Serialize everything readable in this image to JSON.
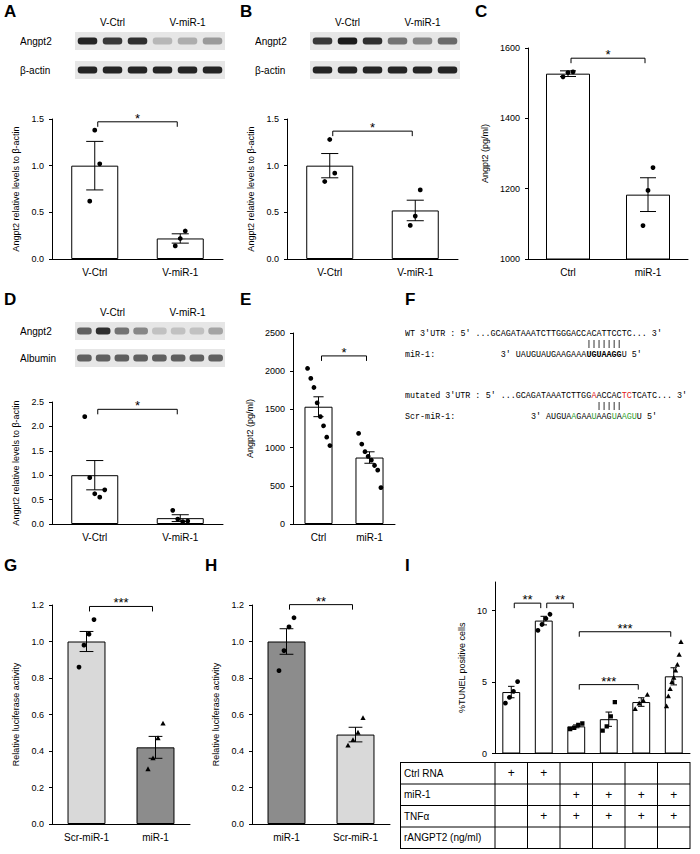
{
  "chart_data": [
    {
      "panel": "A",
      "type": "bar",
      "categories": [
        "V-Ctrl",
        "V-miR-1"
      ],
      "values": [
        1.0,
        0.22
      ],
      "errors": [
        0.26,
        0.05
      ],
      "points": [
        [
          0.62,
          1.38,
          1.02
        ],
        [
          0.14,
          0.22,
          0.3
        ]
      ],
      "colors": [
        "#ffffff",
        "#ffffff"
      ],
      "marker": [
        "circle",
        "circle"
      ],
      "ylabel": "Angpt2 relative levels to β-actin",
      "ylim": [
        0,
        1.5
      ],
      "yticks": [
        {
          "value": 0,
          "label": "0.0"
        },
        0.5,
        {
          "value": 1,
          "label": "1.0"
        },
        1.5
      ],
      "grid": false,
      "significance": [
        {
          "from": 0,
          "to": 1,
          "label": "*"
        }
      ]
    },
    {
      "panel": "B",
      "type": "bar",
      "categories": [
        "V-Ctrl",
        "V-miR-1"
      ],
      "values": [
        1.0,
        0.52
      ],
      "errors": [
        0.13,
        0.11
      ],
      "points": [
        [
          0.83,
          1.28,
          0.92
        ],
        [
          0.36,
          0.46,
          0.74
        ]
      ],
      "colors": [
        "#ffffff",
        "#ffffff"
      ],
      "marker": [
        "circle",
        "circle"
      ],
      "ylabel": "Angpt2 relative levels to β-actin",
      "ylim": [
        0,
        1.5
      ],
      "yticks": [
        {
          "value": 0,
          "label": "0.0"
        },
        0.5,
        {
          "value": 1,
          "label": "1.0"
        },
        1.5
      ],
      "grid": false,
      "significance": [
        {
          "from": 0,
          "to": 1,
          "label": "*"
        }
      ]
    },
    {
      "panel": "C",
      "type": "bar",
      "categories": [
        "Ctrl",
        "miR-1"
      ],
      "values": [
        1527,
        1183
      ],
      "errors": [
        8,
        48
      ],
      "points": [
        [
          1518,
          1530,
          1532
        ],
        [
          1095,
          1195,
          1260
        ]
      ],
      "colors": [
        "#ffffff",
        "#ffffff"
      ],
      "marker": [
        "circle",
        "circle"
      ],
      "ylabel": "Angpt2 (pg/ml)",
      "ylim": [
        1000,
        1600
      ],
      "yticks": [
        1000,
        1200,
        1400,
        1600
      ],
      "grid": false,
      "significance": [
        {
          "from": 0,
          "to": 1,
          "label": "*"
        }
      ]
    },
    {
      "panel": "D",
      "type": "bar",
      "categories": [
        "V-Ctrl",
        "V-miR-1"
      ],
      "values": [
        1.0,
        0.12
      ],
      "errors": [
        0.3,
        0.07
      ],
      "points": [
        [
          2.2,
          0.95,
          0.62,
          0.55,
          0.7
        ],
        [
          0.28,
          0.1,
          0.05,
          0.06
        ]
      ],
      "colors": [
        "#ffffff",
        "#ffffff"
      ],
      "marker": [
        "circle",
        "circle"
      ],
      "ylabel": "Angpt2 relative levels to β-actin",
      "ylim": [
        0,
        2.5
      ],
      "yticks": [
        {
          "value": 0,
          "label": "0.0"
        },
        0.5,
        {
          "value": 1,
          "label": "1.0"
        },
        1.5,
        {
          "value": 2,
          "label": "2.0"
        },
        2.5
      ],
      "grid": false,
      "significance": [
        {
          "from": 0,
          "to": 1,
          "label": "*"
        }
      ]
    },
    {
      "panel": "E",
      "type": "bar",
      "categories": [
        "Ctrl",
        "miR-1"
      ],
      "values": [
        1535,
        870
      ],
      "errors": [
        130,
        75
      ],
      "points": [
        [
          2050,
          1920,
          1800,
          1600,
          1420,
          1300,
          1150,
          1040
        ],
        [
          1200,
          1060,
          960,
          900,
          850,
          780,
          720,
          490
        ]
      ],
      "colors": [
        "#ffffff",
        "#ffffff"
      ],
      "marker": [
        "circle",
        "circle"
      ],
      "ylabel": "Angpt2 (pg/ml)",
      "ylim": [
        0,
        2500
      ],
      "yticks": [
        0,
        500,
        1000,
        1500,
        2000,
        2500
      ],
      "grid": false,
      "significance": [
        {
          "from": 0,
          "to": 1,
          "label": "*"
        }
      ]
    },
    {
      "panel": "G",
      "type": "bar",
      "categories": [
        "Scr-miR-1",
        "miR-1"
      ],
      "values": [
        1.0,
        0.42
      ],
      "errors": [
        0.055,
        0.06
      ],
      "points": [
        [
          0.86,
          0.98,
          1.04,
          1.12
        ],
        [
          0.3,
          0.36,
          0.47,
          0.55
        ]
      ],
      "colors": [
        "#d9d9d9",
        "#8c8c8c"
      ],
      "marker": [
        "circle",
        "triangle"
      ],
      "ylabel": "Relative luciferase activity",
      "ylim": [
        0,
        1.2
      ],
      "yticks": [
        {
          "value": 0,
          "label": "0.0"
        },
        0.2,
        0.4,
        0.6,
        0.8,
        {
          "value": 1,
          "label": "1.0"
        },
        1.2
      ],
      "grid": false,
      "significance": [
        {
          "from": 0,
          "to": 1,
          "label": "***"
        }
      ]
    },
    {
      "panel": "H",
      "type": "bar",
      "categories": [
        "miR-1",
        "Scr-miR-1"
      ],
      "values": [
        1.0,
        0.49
      ],
      "errors": [
        0.07,
        0.04
      ],
      "points": [
        [
          0.84,
          0.95,
          1.08,
          1.13
        ],
        [
          0.43,
          0.46,
          0.5,
          0.58
        ]
      ],
      "colors": [
        "#8c8c8c",
        "#d9d9d9"
      ],
      "marker": [
        "circle",
        "triangle"
      ],
      "ylabel": "Relative luciferase activity",
      "ylim": [
        0,
        1.2
      ],
      "yticks": [
        {
          "value": 0,
          "label": "0.0"
        },
        0.2,
        0.4,
        0.6,
        0.8,
        {
          "value": 1,
          "label": "1.0"
        },
        1.2
      ],
      "grid": false,
      "significance": [
        {
          "from": 0,
          "to": 1,
          "label": "**"
        }
      ]
    },
    {
      "panel": "I",
      "type": "bar",
      "categories": [
        null,
        null,
        null,
        null,
        null,
        null
      ],
      "tick_labels": "y",
      "values": [
        4.3,
        9.3,
        1.9,
        2.4,
        3.6,
        5.4
      ],
      "errors": [
        0.4,
        0.3,
        0.1,
        0.5,
        0.3,
        0.6
      ],
      "points": [
        [
          3.6,
          4.0,
          4.4,
          5.1
        ],
        [
          8.7,
          9.1,
          9.5,
          9.8
        ],
        [
          1.7,
          1.8,
          2.0,
          2.1
        ],
        [
          1.6,
          1.9,
          2.6,
          3.6
        ],
        [
          3.1,
          3.5,
          3.7,
          4.1
        ],
        [
          3.3,
          4.0,
          4.5,
          5.0,
          5.3,
          5.8,
          6.2,
          6.9,
          7.8
        ]
      ],
      "colors": [
        "#ffffff",
        "#ffffff",
        "#ffffff",
        "#ffffff",
        "#ffffff",
        "#ffffff"
      ],
      "marker": [
        "circle",
        "circle",
        "square",
        "square",
        "triangle",
        "triangle"
      ],
      "ylabel": "%TUNEL positive cells",
      "ylim": [
        0,
        12
      ],
      "yticks": [
        0,
        5,
        10
      ],
      "grid": false,
      "significance": [
        {
          "from": 0,
          "to": 1,
          "label": "**"
        },
        {
          "from": 1,
          "to": 2,
          "label": "**"
        },
        {
          "from": 2,
          "to": 5,
          "label": "***"
        },
        {
          "from": 2,
          "to": 4,
          "label": "***"
        }
      ],
      "table": {
        "symbol": "+",
        "rows": [
          {
            "label": "Ctrl RNA",
            "marks": [
              true,
              true,
              false,
              false,
              false,
              false
            ]
          },
          {
            "label": "miR-1",
            "marks": [
              false,
              false,
              true,
              true,
              true,
              true
            ]
          },
          {
            "label": "TNFα",
            "marks": [
              false,
              true,
              true,
              true,
              true,
              true
            ]
          },
          {
            "label": "rANGPT2 (ng/ml)",
            "marks": [
              false,
              false,
              false,
              false,
              false,
              false
            ]
          }
        ]
      }
    }
  ],
  "blots": [
    {
      "panel": "A",
      "groups": [
        "V-Ctrl",
        "V-miR-1"
      ],
      "rows": [
        {
          "label": "Angpt2",
          "bands": [
            0.9,
            0.8,
            0.85,
            0.15,
            0.2,
            0.3
          ]
        },
        {
          "label": "β-actin",
          "bands": [
            0.9,
            0.9,
            0.9,
            0.9,
            0.9,
            0.9
          ]
        }
      ]
    },
    {
      "panel": "B",
      "groups": [
        "V-Ctrl",
        "V-miR-1"
      ],
      "rows": [
        {
          "label": "Angpt2",
          "bands": [
            0.8,
            0.95,
            0.85,
            0.5,
            0.4,
            0.55
          ]
        },
        {
          "label": "β-actin",
          "bands": [
            0.9,
            0.9,
            0.9,
            0.9,
            0.9,
            0.9
          ]
        }
      ]
    },
    {
      "panel": "D",
      "groups": [
        "V-Ctrl",
        "V-miR-1"
      ],
      "rows": [
        {
          "label": "Angpt2",
          "bands": [
            0.6,
            0.85,
            0.5,
            0.4,
            0.1,
            0.1,
            0.1,
            0.25
          ]
        },
        {
          "label": "Albumin",
          "bands": [
            0.6,
            0.6,
            0.6,
            0.6,
            0.6,
            0.6,
            0.6,
            0.6
          ]
        }
      ]
    }
  ],
  "sequence": {
    "panel": "F",
    "pairs": [
      {
        "target": {
          "label": "WT 3'UTR :",
          "segments": [
            {
              "text": "5' ...GCAGATAAATCTTGGGACC"
            },
            {
              "text": "ACATTCC",
              "paired": true
            },
            {
              "text": "TC... 3'"
            }
          ]
        },
        "mirna": {
          "label": "miR-1:",
          "segments": [
            {
              "text": "3' UAUGUAUGAAGAAA"
            },
            {
              "text": "UGUAAGG",
              "paired": true,
              "weight": "bold"
            },
            {
              "text": "U 5'"
            }
          ]
        }
      },
      {
        "target": {
          "label": "mutated 3'UTR :",
          "segments": [
            {
              "text": "5' ...GCAGATAAATCTTGG"
            },
            {
              "text": "A",
              "color": "#e02020"
            },
            {
              "text": "ACCAC",
              "paired": true
            },
            {
              "text": "TC",
              "color": "#e02020"
            },
            {
              "text": "TCATC... 3'"
            }
          ]
        },
        "mirna": {
          "label": "Scr-miR-1:",
          "segments": [
            {
              "text": "3' AUGUA"
            },
            {
              "text": "A",
              "color": "#2ca02c"
            },
            {
              "text": "GAA"
            },
            {
              "text": "U",
              "color": "#2ca02c"
            },
            {
              "text": "AAG",
              "paired": true
            },
            {
              "text": "U",
              "color": "#2ca02c"
            },
            {
              "text": "A"
            },
            {
              "text": "AG",
              "color": "#2ca02c"
            },
            {
              "text": "U",
              "color": "#2ca02c"
            },
            {
              "text": "U 5'"
            }
          ]
        }
      }
    ]
  }
}
